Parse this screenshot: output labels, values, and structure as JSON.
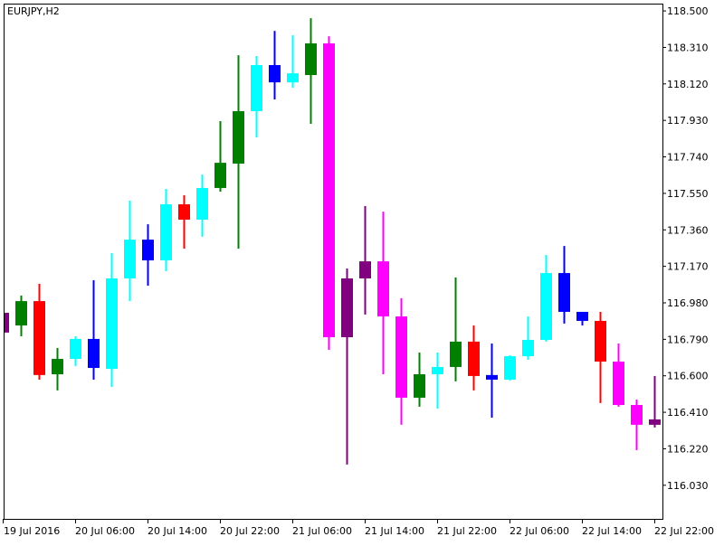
{
  "chart_data": {
    "type": "candlestick",
    "title": "EURJPY,H2",
    "categories": [
      "19 Jul 2016",
      null,
      null,
      null,
      "20 Jul 06:00",
      null,
      null,
      null,
      "20 Jul 14:00",
      null,
      null,
      null,
      "20 Jul 22:00",
      null,
      null,
      null,
      "21 Jul 06:00",
      null,
      null,
      null,
      "21 Jul 14:00",
      null,
      null,
      null,
      "21 Jul 22:00",
      null,
      null,
      null,
      "22 Jul 06:00",
      null,
      null,
      null,
      "22 Jul 14:00",
      null,
      null,
      null,
      "22 Jul 22:00"
    ],
    "open": [
      116.928,
      116.862,
      116.989,
      116.608,
      116.688,
      116.792,
      116.636,
      117.107,
      117.309,
      117.201,
      117.493,
      117.413,
      117.578,
      117.705,
      117.978,
      118.218,
      118.128,
      118.166,
      118.331,
      116.801,
      117.107,
      117.196,
      116.909,
      116.486,
      116.608,
      116.646,
      116.778,
      116.604,
      116.58,
      116.702,
      116.787,
      117.135,
      116.933,
      116.886,
      116.674,
      116.448,
      116.345
    ],
    "high": [
      116.93,
      117.018,
      117.079,
      116.745,
      116.806,
      117.098,
      117.239,
      117.512,
      117.389,
      117.573,
      117.54,
      117.648,
      117.926,
      118.269,
      118.265,
      118.396,
      118.373,
      118.462,
      118.368,
      117.159,
      117.484,
      117.455,
      117.004,
      116.721,
      116.721,
      117.112,
      116.862,
      116.768,
      116.707,
      116.909,
      117.229,
      117.276,
      116.933,
      116.933,
      116.768,
      116.476,
      116.599
    ],
    "low": [
      116.82,
      116.806,
      116.58,
      116.524,
      116.651,
      116.58,
      116.542,
      116.989,
      117.069,
      117.145,
      117.262,
      117.324,
      117.559,
      117.262,
      117.841,
      118.039,
      118.1,
      117.912,
      116.735,
      116.138,
      116.919,
      116.608,
      116.345,
      116.439,
      116.429,
      116.571,
      116.524,
      116.382,
      116.575,
      116.684,
      116.778,
      116.872,
      116.862,
      116.458,
      116.439,
      116.213,
      116.331
    ],
    "close": [
      116.825,
      116.989,
      116.604,
      116.688,
      116.792,
      116.641,
      117.107,
      117.309,
      117.201,
      117.493,
      117.413,
      117.578,
      117.709,
      117.978,
      118.218,
      118.128,
      118.175,
      118.331,
      116.801,
      117.107,
      117.196,
      116.909,
      116.486,
      116.608,
      116.646,
      116.778,
      116.599,
      116.58,
      116.702,
      116.787,
      117.135,
      116.933,
      116.886,
      116.674,
      116.448,
      116.345,
      116.373
    ],
    "colors": [
      "#800080",
      "#008000",
      "#ff0000",
      "#008000",
      "#00ffff",
      "#0000ff",
      "#00ffff",
      "#00ffff",
      "#0000ff",
      "#00ffff",
      "#ff0000",
      "#00ffff",
      "#008000",
      "#008000",
      "#00ffff",
      "#0000ff",
      "#00ffff",
      "#008000",
      "#ff00ff",
      "#800080",
      "#800080",
      "#ff00ff",
      "#ff00ff",
      "#008000",
      "#00ffff",
      "#008000",
      "#ff0000",
      "#0000ff",
      "#00ffff",
      "#00ffff",
      "#00ffff",
      "#0000ff",
      "#0000ff",
      "#ff0000",
      "#ff00ff",
      "#ff00ff",
      "#800080"
    ],
    "ylim": [
      115.855,
      118.538
    ],
    "yticks": [
      {
        "value": 116.03,
        "label": "116.030"
      },
      {
        "value": 116.22,
        "label": "116.220"
      },
      {
        "value": 116.41,
        "label": "116.410"
      },
      {
        "value": 116.6,
        "label": "116.600"
      },
      {
        "value": 116.79,
        "label": "116.790"
      },
      {
        "value": 116.98,
        "label": "116.980"
      },
      {
        "value": 117.17,
        "label": "117.170"
      },
      {
        "value": 117.36,
        "label": "117.360"
      },
      {
        "value": 117.55,
        "label": "117.550"
      },
      {
        "value": 117.74,
        "label": "117.740"
      },
      {
        "value": 117.93,
        "label": "117.930"
      },
      {
        "value": 118.12,
        "label": "118.120"
      },
      {
        "value": 118.31,
        "label": "118.310"
      },
      {
        "value": 118.5,
        "label": "118.500"
      }
    ]
  }
}
